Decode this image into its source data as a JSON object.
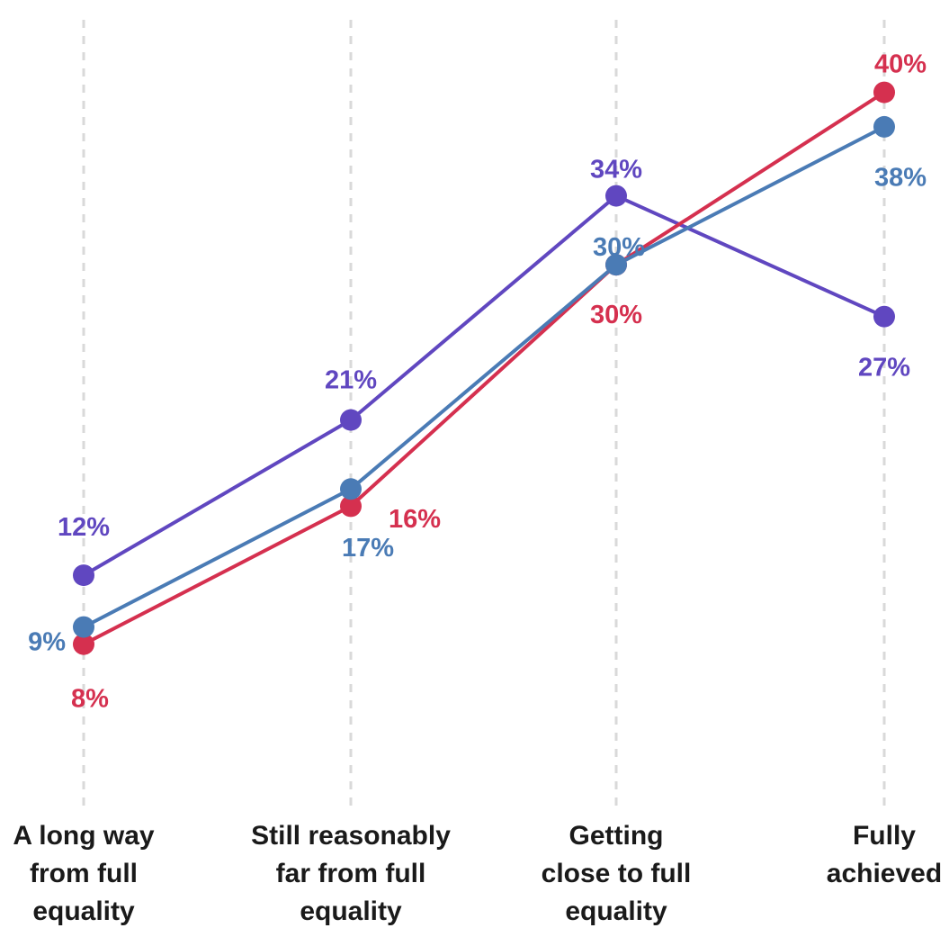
{
  "chart_data": {
    "type": "line",
    "title": "",
    "xlabel": "",
    "ylabel": "",
    "categories": [
      [
        "A long way",
        "from full",
        "equality"
      ],
      [
        "Still reasonably",
        "far from full",
        "equality"
      ],
      [
        "Getting",
        "close to full",
        "equality"
      ],
      [
        "Fully",
        "achieved"
      ]
    ],
    "ylim": [
      0,
      45
    ],
    "grid": "vertical dashed",
    "legend": "none",
    "series": [
      {
        "color": "#6047c0",
        "values": [
          12,
          21,
          34,
          27
        ],
        "labels": [
          "12%",
          "21%",
          "34%",
          "27%"
        ]
      },
      {
        "color": "#d5304f",
        "values": [
          8,
          16,
          30,
          40
        ],
        "labels": [
          "8%",
          "16%",
          "30%",
          "40%"
        ]
      },
      {
        "color": "#4a7bb5",
        "values": [
          9,
          17,
          30,
          38
        ],
        "labels": [
          "9%",
          "17%",
          "30%",
          "38%"
        ]
      }
    ]
  }
}
